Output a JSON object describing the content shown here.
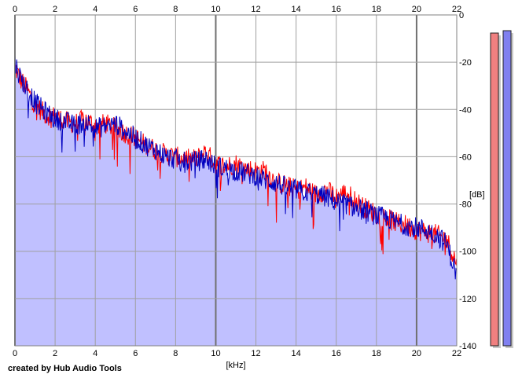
{
  "chart_data": {
    "type": "area",
    "title": "",
    "xlabel": "[kHz]",
    "ylabel": "[dB]",
    "x_ticks": [
      "0",
      "2",
      "4",
      "6",
      "8",
      "10",
      "12",
      "14",
      "16",
      "18",
      "20",
      "22"
    ],
    "y_ticks": [
      "0",
      "-20",
      "-40",
      "-60",
      "-80",
      "-100",
      "-120",
      "-140"
    ],
    "xlim": [
      0,
      22
    ],
    "ylim": [
      -140,
      0
    ],
    "grid": true,
    "series": [
      {
        "color": "#ff0000",
        "x": [
          0,
          0.25,
          0.5,
          0.75,
          1,
          1.5,
          2,
          2.5,
          3,
          3.5,
          4,
          4.5,
          5,
          5.5,
          6,
          6.5,
          7,
          7.5,
          8,
          8.5,
          9,
          9.5,
          10,
          10.5,
          11,
          11.5,
          12,
          12.5,
          13,
          13.5,
          14,
          14.5,
          15,
          15.5,
          16,
          16.5,
          17,
          17.5,
          18,
          18.5,
          19,
          19.5,
          20,
          20.5,
          21,
          21.5,
          22
        ],
        "y": [
          -22,
          -27,
          -30,
          -34,
          -38,
          -42,
          -43,
          -45,
          -46,
          -44,
          -47,
          -46,
          -48,
          -50,
          -52,
          -55,
          -57,
          -59,
          -60,
          -61,
          -61,
          -58,
          -63,
          -64,
          -63,
          -65,
          -66,
          -66,
          -71,
          -72,
          -74,
          -73,
          -76,
          -74,
          -77,
          -75,
          -79,
          -82,
          -84,
          -86,
          -88,
          -89,
          -91,
          -92,
          -93,
          -95,
          -105
        ]
      },
      {
        "color": "#0000c0",
        "x": [
          0,
          0.25,
          0.5,
          0.75,
          1,
          1.5,
          2,
          2.5,
          3,
          3.5,
          4,
          4.5,
          5,
          5.5,
          6,
          6.5,
          7,
          7.5,
          8,
          8.5,
          9,
          9.5,
          10,
          10.5,
          11,
          11.5,
          12,
          12.5,
          13,
          13.5,
          14,
          14.5,
          15,
          15.5,
          16,
          16.5,
          17,
          17.5,
          18,
          18.5,
          19,
          19.5,
          20,
          20.5,
          21,
          21.5,
          22
        ],
        "y": [
          -20,
          -26,
          -30,
          -33,
          -37,
          -41,
          -44,
          -45,
          -47,
          -45,
          -48,
          -47,
          -46,
          -49,
          -52,
          -55,
          -57,
          -60,
          -61,
          -62,
          -62,
          -61,
          -64,
          -65,
          -66,
          -67,
          -68,
          -70,
          -71,
          -73,
          -74,
          -75,
          -76,
          -77,
          -79,
          -80,
          -82,
          -83,
          -85,
          -86,
          -88,
          -89,
          -90,
          -91,
          -93,
          -97,
          -110
        ]
      }
    ],
    "area_fill": "#c0c0ff",
    "meters": [
      {
        "channel": "left",
        "value_db": -5,
        "color": "#f08080"
      },
      {
        "channel": "right",
        "value_db": -4,
        "color": "#8080f0"
      }
    ]
  },
  "footer": {
    "credit": "created by Hub Audio Tools"
  }
}
